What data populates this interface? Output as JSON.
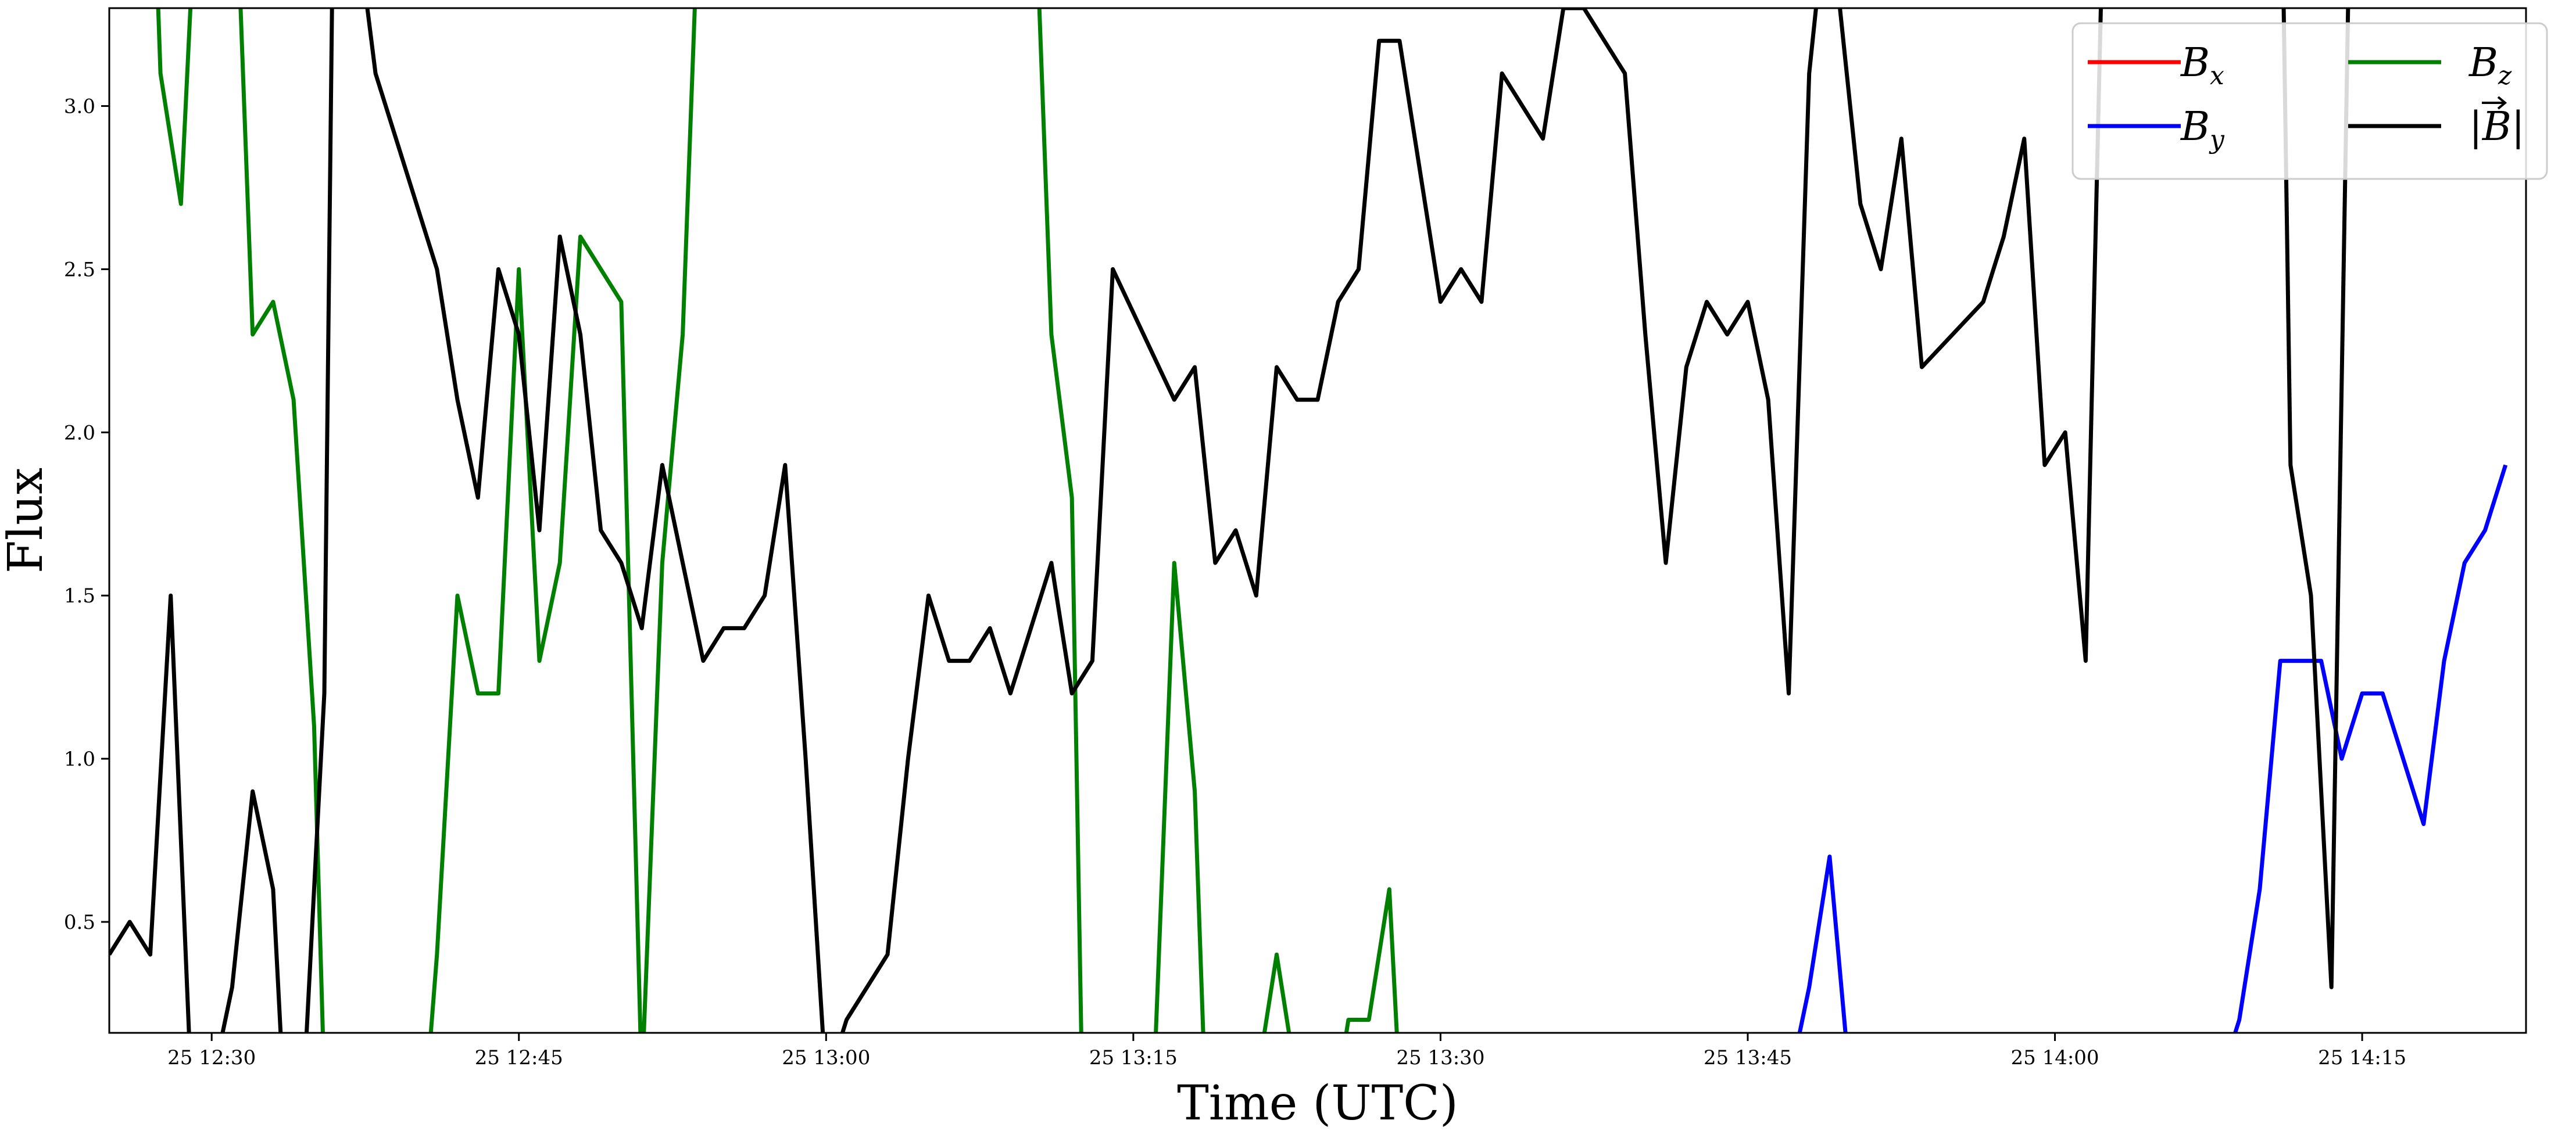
{
  "chart_data": {
    "type": "line",
    "title": "",
    "xlabel": "Time (UTC)",
    "ylabel": "Flux",
    "xlim": [
      "2025-01-25T12:25:00",
      "2025-01-25T14:23:00"
    ],
    "ylim": [
      0.16,
      3.3
    ],
    "grid": false,
    "legend_position": "top-right",
    "x_ticks": [
      {
        "t": "2025-01-25T12:30:00",
        "label": "25 12:30"
      },
      {
        "t": "2025-01-25T12:45:00",
        "label": "25 12:45"
      },
      {
        "t": "2025-01-25T13:00:00",
        "label": "25 13:00"
      },
      {
        "t": "2025-01-25T13:15:00",
        "label": "25 13:15"
      },
      {
        "t": "2025-01-25T13:30:00",
        "label": "25 13:30"
      },
      {
        "t": "2025-01-25T13:45:00",
        "label": "25 13:45"
      },
      {
        "t": "2025-01-25T14:00:00",
        "label": "25 14:00"
      },
      {
        "t": "2025-01-25T14:15:00",
        "label": "25 14:15"
      }
    ],
    "y_ticks": [
      {
        "v": 0.5,
        "label": "0.5"
      },
      {
        "v": 1.0,
        "label": "1.0"
      },
      {
        "v": 1.5,
        "label": "1.5"
      },
      {
        "v": 2.0,
        "label": "2.0"
      },
      {
        "v": 2.5,
        "label": "2.5"
      },
      {
        "v": 3.0,
        "label": "3.0"
      }
    ],
    "series": [
      {
        "name": "B_x",
        "legend_base": "B",
        "legend_sub": "x",
        "color": "#ff0000",
        "points": []
      },
      {
        "name": "B_y",
        "legend_base": "B",
        "legend_sub": "y",
        "color": "#0000ff",
        "points": [
          [
            "2025-01-25T13:47:00",
            0.0
          ],
          [
            "2025-01-25T13:48:00",
            0.3
          ],
          [
            "2025-01-25T13:49:00",
            0.7
          ],
          [
            "2025-01-25T13:50:00",
            0.0
          ],
          [
            "2025-01-25T14:08:00",
            0.0
          ],
          [
            "2025-01-25T14:09:00",
            0.2
          ],
          [
            "2025-01-25T14:10:00",
            0.6
          ],
          [
            "2025-01-25T14:11:00",
            1.3
          ],
          [
            "2025-01-25T14:12:00",
            1.3
          ],
          [
            "2025-01-25T14:13:00",
            1.3
          ],
          [
            "2025-01-25T14:14:00",
            1.0
          ],
          [
            "2025-01-25T14:15:00",
            1.2
          ],
          [
            "2025-01-25T14:16:00",
            1.2
          ],
          [
            "2025-01-25T14:17:00",
            1.0
          ],
          [
            "2025-01-25T14:18:00",
            0.8
          ],
          [
            "2025-01-25T14:19:00",
            1.3
          ],
          [
            "2025-01-25T14:20:00",
            1.6
          ],
          [
            "2025-01-25T14:21:00",
            1.7
          ],
          [
            "2025-01-25T14:22:00",
            1.9
          ]
        ]
      },
      {
        "name": "B_z",
        "legend_base": "B",
        "legend_sub": "z",
        "color": "#008000",
        "points": [
          [
            "2025-01-25T12:27:00",
            4.0
          ],
          [
            "2025-01-25T12:27:30",
            3.1
          ],
          [
            "2025-01-25T12:28:30",
            2.7
          ],
          [
            "2025-01-25T12:29:30",
            4.0
          ],
          [
            "2025-01-25T12:31:00",
            4.0
          ],
          [
            "2025-01-25T12:32:00",
            2.3
          ],
          [
            "2025-01-25T12:33:00",
            2.4
          ],
          [
            "2025-01-25T12:34:00",
            2.1
          ],
          [
            "2025-01-25T12:35:00",
            1.1
          ],
          [
            "2025-01-25T12:35:30",
            0.0
          ],
          [
            "2025-01-25T12:40:30",
            0.0
          ],
          [
            "2025-01-25T12:41:00",
            0.4
          ],
          [
            "2025-01-25T12:42:00",
            1.5
          ],
          [
            "2025-01-25T12:43:00",
            1.2
          ],
          [
            "2025-01-25T12:44:00",
            1.2
          ],
          [
            "2025-01-25T12:45:00",
            2.5
          ],
          [
            "2025-01-25T12:46:00",
            1.3
          ],
          [
            "2025-01-25T12:47:00",
            1.6
          ],
          [
            "2025-01-25T12:48:00",
            2.6
          ],
          [
            "2025-01-25T12:50:00",
            2.4
          ],
          [
            "2025-01-25T12:51:00",
            0.0
          ],
          [
            "2025-01-25T12:52:00",
            1.6
          ],
          [
            "2025-01-25T12:53:00",
            2.3
          ],
          [
            "2025-01-25T12:54:00",
            4.0
          ],
          [
            "2025-01-25T13:10:00",
            4.0
          ],
          [
            "2025-01-25T13:11:00",
            2.3
          ],
          [
            "2025-01-25T13:12:00",
            1.8
          ],
          [
            "2025-01-25T13:12:30",
            0.0
          ],
          [
            "2025-01-25T13:16:00",
            0.0
          ],
          [
            "2025-01-25T13:17:00",
            1.6
          ],
          [
            "2025-01-25T13:18:00",
            0.9
          ],
          [
            "2025-01-25T13:18:30",
            0.0
          ],
          [
            "2025-01-25T13:21:00",
            0.0
          ],
          [
            "2025-01-25T13:22:00",
            0.4
          ],
          [
            "2025-01-25T13:23:00",
            0.0
          ],
          [
            "2025-01-25T13:25:00",
            0.0
          ],
          [
            "2025-01-25T13:25:30",
            0.2
          ],
          [
            "2025-01-25T13:26:30",
            0.2
          ],
          [
            "2025-01-25T13:27:30",
            0.6
          ],
          [
            "2025-01-25T13:28:00",
            0.0
          ]
        ]
      },
      {
        "name": "|B|",
        "legend_base": "|B|",
        "legend_sub": "",
        "color": "#000000",
        "points": [
          [
            "2025-01-25T12:25:00",
            0.4
          ],
          [
            "2025-01-25T12:26:00",
            0.5
          ],
          [
            "2025-01-25T12:27:00",
            0.4
          ],
          [
            "2025-01-25T12:28:00",
            1.5
          ],
          [
            "2025-01-25T12:29:00",
            0.0
          ],
          [
            "2025-01-25T12:30:00",
            0.0
          ],
          [
            "2025-01-25T12:31:00",
            0.3
          ],
          [
            "2025-01-25T12:32:00",
            0.9
          ],
          [
            "2025-01-25T12:33:00",
            0.6
          ],
          [
            "2025-01-25T12:33:30",
            0.0
          ],
          [
            "2025-01-25T12:34:30",
            0.0
          ],
          [
            "2025-01-25T12:35:30",
            1.2
          ],
          [
            "2025-01-25T12:36:00",
            4.0
          ],
          [
            "2025-01-25T12:37:00",
            3.6
          ],
          [
            "2025-01-25T12:38:00",
            3.1
          ],
          [
            "2025-01-25T12:41:00",
            2.5
          ],
          [
            "2025-01-25T12:42:00",
            2.1
          ],
          [
            "2025-01-25T12:43:00",
            1.8
          ],
          [
            "2025-01-25T12:44:00",
            2.5
          ],
          [
            "2025-01-25T12:45:00",
            2.3
          ],
          [
            "2025-01-25T12:46:00",
            1.7
          ],
          [
            "2025-01-25T12:47:00",
            2.6
          ],
          [
            "2025-01-25T12:48:00",
            2.3
          ],
          [
            "2025-01-25T12:49:00",
            1.7
          ],
          [
            "2025-01-25T12:50:00",
            1.6
          ],
          [
            "2025-01-25T12:51:00",
            1.4
          ],
          [
            "2025-01-25T12:52:00",
            1.9
          ],
          [
            "2025-01-25T12:53:00",
            1.6
          ],
          [
            "2025-01-25T12:54:00",
            1.3
          ],
          [
            "2025-01-25T12:55:00",
            1.4
          ],
          [
            "2025-01-25T12:56:00",
            1.4
          ],
          [
            "2025-01-25T12:57:00",
            1.5
          ],
          [
            "2025-01-25T12:58:00",
            1.9
          ],
          [
            "2025-01-25T12:59:00",
            1.0
          ],
          [
            "2025-01-25T13:00:00",
            0.0
          ],
          [
            "2025-01-25T13:01:00",
            0.2
          ],
          [
            "2025-01-25T13:03:00",
            0.4
          ],
          [
            "2025-01-25T13:04:00",
            1.0
          ],
          [
            "2025-01-25T13:05:00",
            1.5
          ],
          [
            "2025-01-25T13:06:00",
            1.3
          ],
          [
            "2025-01-25T13:07:00",
            1.3
          ],
          [
            "2025-01-25T13:08:00",
            1.4
          ],
          [
            "2025-01-25T13:09:00",
            1.2
          ],
          [
            "2025-01-25T13:11:00",
            1.6
          ],
          [
            "2025-01-25T13:12:00",
            1.2
          ],
          [
            "2025-01-25T13:13:00",
            1.3
          ],
          [
            "2025-01-25T13:14:00",
            2.5
          ],
          [
            "2025-01-25T13:17:00",
            2.1
          ],
          [
            "2025-01-25T13:18:00",
            2.2
          ],
          [
            "2025-01-25T13:19:00",
            1.6
          ],
          [
            "2025-01-25T13:20:00",
            1.7
          ],
          [
            "2025-01-25T13:21:00",
            1.5
          ],
          [
            "2025-01-25T13:22:00",
            2.2
          ],
          [
            "2025-01-25T13:23:00",
            2.1
          ],
          [
            "2025-01-25T13:24:00",
            2.1
          ],
          [
            "2025-01-25T13:25:00",
            2.4
          ],
          [
            "2025-01-25T13:26:00",
            2.5
          ],
          [
            "2025-01-25T13:27:00",
            3.2
          ],
          [
            "2025-01-25T13:28:00",
            3.2
          ],
          [
            "2025-01-25T13:30:00",
            2.4
          ],
          [
            "2025-01-25T13:31:00",
            2.5
          ],
          [
            "2025-01-25T13:32:00",
            2.4
          ],
          [
            "2025-01-25T13:33:00",
            3.1
          ],
          [
            "2025-01-25T13:35:00",
            2.9
          ],
          [
            "2025-01-25T13:36:00",
            3.3
          ],
          [
            "2025-01-25T13:37:00",
            3.3
          ],
          [
            "2025-01-25T13:38:00",
            3.2
          ],
          [
            "2025-01-25T13:39:00",
            3.1
          ],
          [
            "2025-01-25T13:40:00",
            2.3
          ],
          [
            "2025-01-25T13:41:00",
            1.6
          ],
          [
            "2025-01-25T13:42:00",
            2.2
          ],
          [
            "2025-01-25T13:43:00",
            2.4
          ],
          [
            "2025-01-25T13:44:00",
            2.3
          ],
          [
            "2025-01-25T13:45:00",
            2.4
          ],
          [
            "2025-01-25T13:46:00",
            2.1
          ],
          [
            "2025-01-25T13:47:00",
            1.2
          ],
          [
            "2025-01-25T13:48:00",
            3.1
          ],
          [
            "2025-01-25T13:48:30",
            3.4
          ],
          [
            "2025-01-25T13:49:30",
            3.3
          ],
          [
            "2025-01-25T13:50:30",
            2.7
          ],
          [
            "2025-01-25T13:51:30",
            2.5
          ],
          [
            "2025-01-25T13:52:30",
            2.9
          ],
          [
            "2025-01-25T13:53:30",
            2.2
          ],
          [
            "2025-01-25T13:56:30",
            2.4
          ],
          [
            "2025-01-25T13:57:30",
            2.6
          ],
          [
            "2025-01-25T13:58:30",
            2.9
          ],
          [
            "2025-01-25T13:59:30",
            1.9
          ],
          [
            "2025-01-25T14:00:30",
            2.0
          ],
          [
            "2025-01-25T14:01:30",
            1.3
          ],
          [
            "2025-01-25T14:02:30",
            4.0
          ],
          [
            "2025-01-25T14:11:00",
            4.0
          ],
          [
            "2025-01-25T14:11:30",
            1.9
          ],
          [
            "2025-01-25T14:12:30",
            1.5
          ],
          [
            "2025-01-25T14:13:30",
            0.3
          ],
          [
            "2025-01-25T14:14:30",
            4.0
          ]
        ]
      }
    ]
  }
}
